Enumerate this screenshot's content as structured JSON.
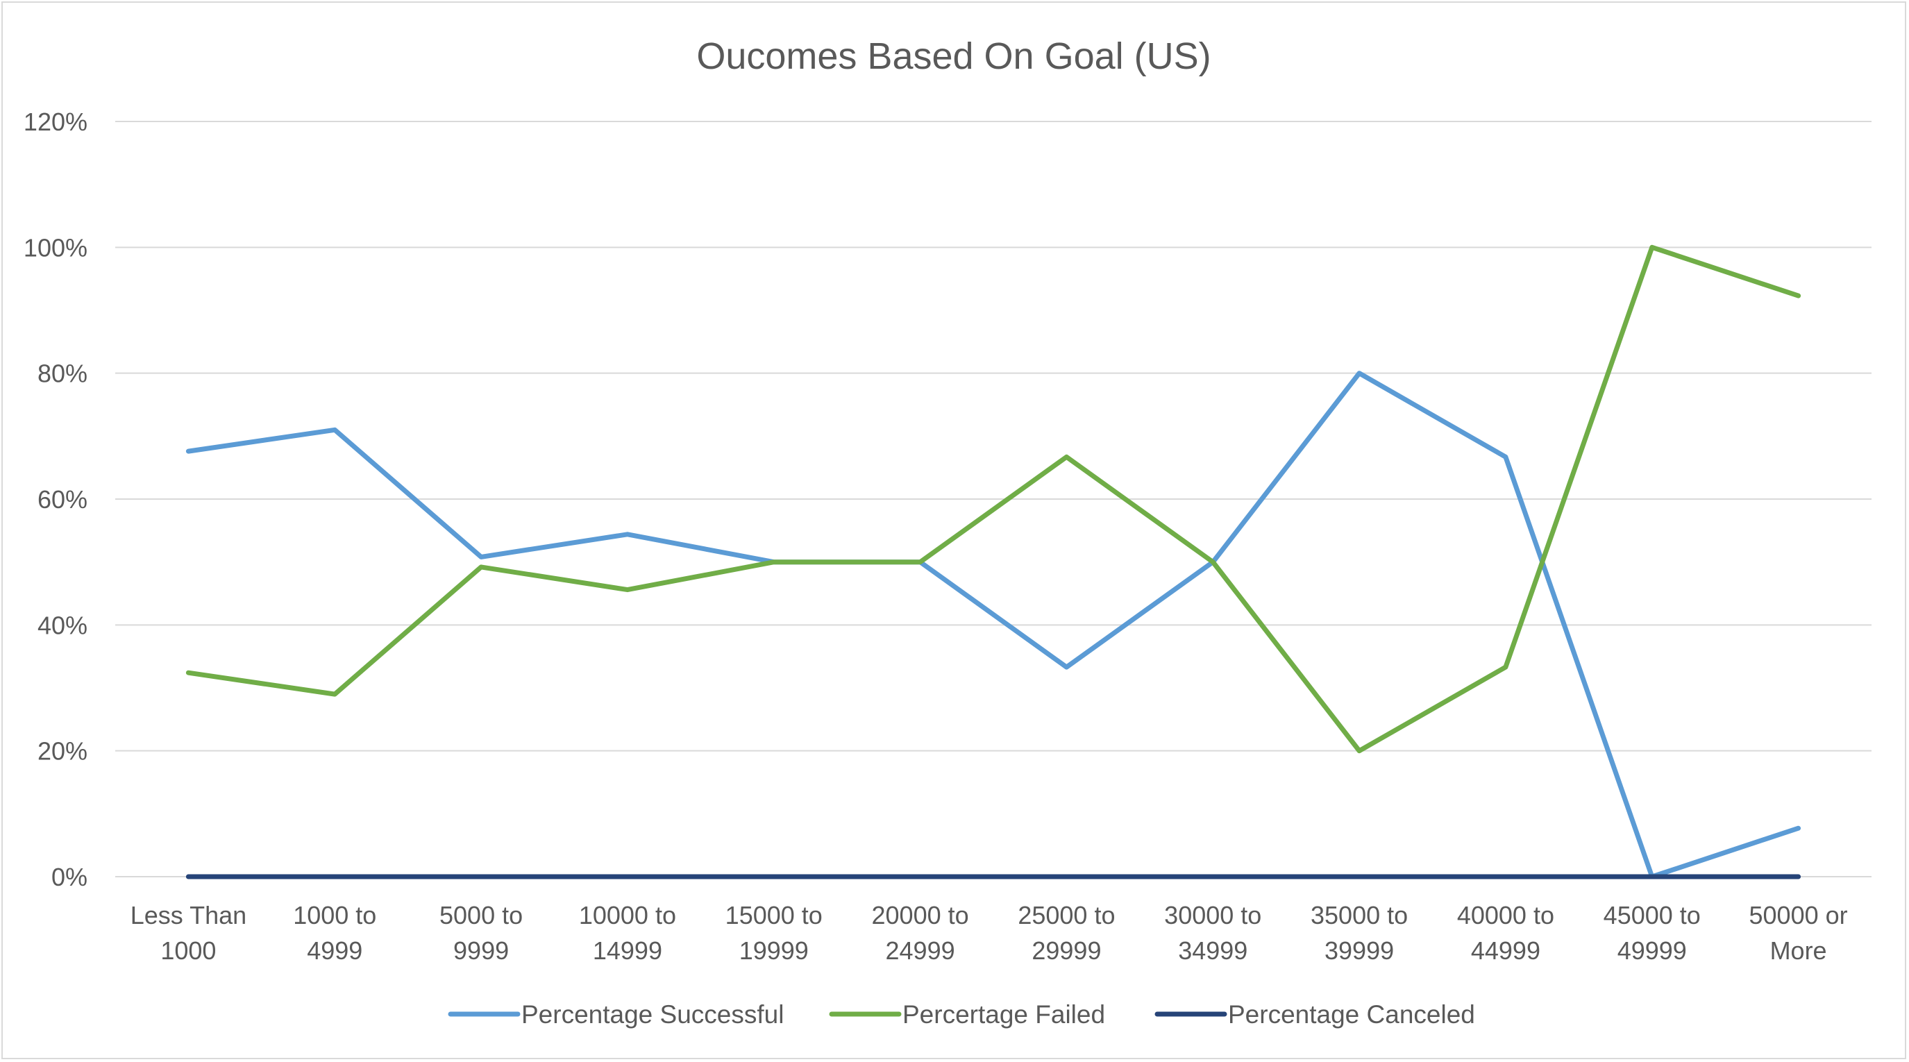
{
  "chart_data": {
    "type": "line",
    "title": "Oucomes Based On Goal (US)",
    "xlabel": "",
    "ylabel": "",
    "ylim": [
      0,
      120
    ],
    "y_tick_step": 20,
    "y_tick_format": "percent",
    "y_ticks": [
      "0%",
      "20%",
      "40%",
      "60%",
      "80%",
      "100%",
      "120%"
    ],
    "grid": true,
    "legend_position": "bottom",
    "categories": [
      [
        "Less Than",
        "1000"
      ],
      [
        "1000 to",
        "4999"
      ],
      [
        "5000 to",
        "9999"
      ],
      [
        "10000 to",
        "14999"
      ],
      [
        "15000 to",
        "19999"
      ],
      [
        "20000 to",
        "24999"
      ],
      [
        "25000 to",
        "29999"
      ],
      [
        "30000 to",
        "34999"
      ],
      [
        "35000 to",
        "39999"
      ],
      [
        "40000 to",
        "44999"
      ],
      [
        "45000 to",
        "49999"
      ],
      [
        "50000 or",
        "More"
      ]
    ],
    "series": [
      {
        "name": "Percentage Successful",
        "color": "#5B9BD5",
        "values": [
          67.6,
          71.0,
          50.8,
          54.4,
          50.0,
          50.0,
          33.3,
          50.0,
          80.0,
          66.7,
          0.0,
          7.7
        ]
      },
      {
        "name": "Percertage Failed",
        "color": "#70AD47",
        "values": [
          32.4,
          29.0,
          49.2,
          45.6,
          50.0,
          50.0,
          66.7,
          50.0,
          20.0,
          33.3,
          100.0,
          92.3
        ]
      },
      {
        "name": "Percentage Canceled",
        "color": "#264478",
        "values": [
          0,
          0,
          0,
          0,
          0,
          0,
          0,
          0,
          0,
          0,
          0,
          0
        ]
      }
    ]
  }
}
